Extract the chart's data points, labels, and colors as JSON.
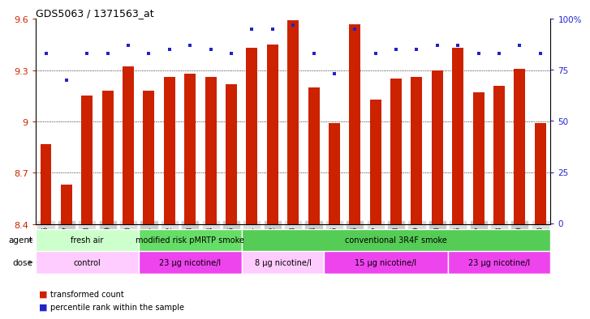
{
  "title": "GDS5063 / 1371563_at",
  "samples": [
    "GSM1217206",
    "GSM1217207",
    "GSM1217208",
    "GSM1217209",
    "GSM1217210",
    "GSM1217211",
    "GSM1217212",
    "GSM1217213",
    "GSM1217214",
    "GSM1217215",
    "GSM1217221",
    "GSM1217222",
    "GSM1217223",
    "GSM1217224",
    "GSM1217225",
    "GSM1217216",
    "GSM1217217",
    "GSM1217218",
    "GSM1217219",
    "GSM1217220",
    "GSM1217226",
    "GSM1217227",
    "GSM1217228",
    "GSM1217229",
    "GSM1217230"
  ],
  "transformed_counts": [
    8.87,
    8.63,
    9.15,
    9.18,
    9.32,
    9.18,
    9.26,
    9.28,
    9.26,
    9.22,
    9.43,
    9.45,
    9.59,
    9.2,
    8.99,
    9.57,
    9.13,
    9.25,
    9.26,
    9.3,
    9.43,
    9.17,
    9.21,
    9.31,
    8.99
  ],
  "percentile_ranks": [
    83,
    70,
    83,
    83,
    87,
    83,
    85,
    87,
    85,
    83,
    95,
    95,
    97,
    83,
    73,
    95,
    83,
    85,
    85,
    87,
    87,
    83,
    83,
    87,
    83
  ],
  "ymin": 8.4,
  "ymax": 9.6,
  "yticks": [
    8.4,
    8.7,
    9.0,
    9.3,
    9.6
  ],
  "ytick_labels": [
    "8.4",
    "8.7",
    "9",
    "9.3",
    "9.6"
  ],
  "right_yticks": [
    0,
    25,
    50,
    75,
    100
  ],
  "right_ytick_labels": [
    "0",
    "25",
    "50",
    "75",
    "100%"
  ],
  "bar_color": "#cc2200",
  "dot_color": "#2222cc",
  "bar_bottom": 8.4,
  "agent_groups": [
    {
      "label": "fresh air",
      "start": 0,
      "end": 5,
      "color": "#ccffcc"
    },
    {
      "label": "modified risk pMRTP smoke",
      "start": 5,
      "end": 10,
      "color": "#66dd66"
    },
    {
      "label": "conventional 3R4F smoke",
      "start": 10,
      "end": 25,
      "color": "#55cc55"
    }
  ],
  "dose_groups": [
    {
      "label": "control",
      "start": 0,
      "end": 5,
      "color": "#ffccff"
    },
    {
      "label": "23 µg nicotine/l",
      "start": 5,
      "end": 10,
      "color": "#ee44ee"
    },
    {
      "label": "8 µg nicotine/l",
      "start": 10,
      "end": 14,
      "color": "#ffccff"
    },
    {
      "label": "15 µg nicotine/l",
      "start": 14,
      "end": 20,
      "color": "#ee44ee"
    },
    {
      "label": "23 µg nicotine/l",
      "start": 20,
      "end": 25,
      "color": "#ee44ee"
    }
  ],
  "legend_items": [
    {
      "label": "transformed count",
      "color": "#cc2200"
    },
    {
      "label": "percentile rank within the sample",
      "color": "#2222cc"
    }
  ],
  "grid_lines": [
    8.7,
    9.0,
    9.3
  ],
  "bar_width": 0.55
}
